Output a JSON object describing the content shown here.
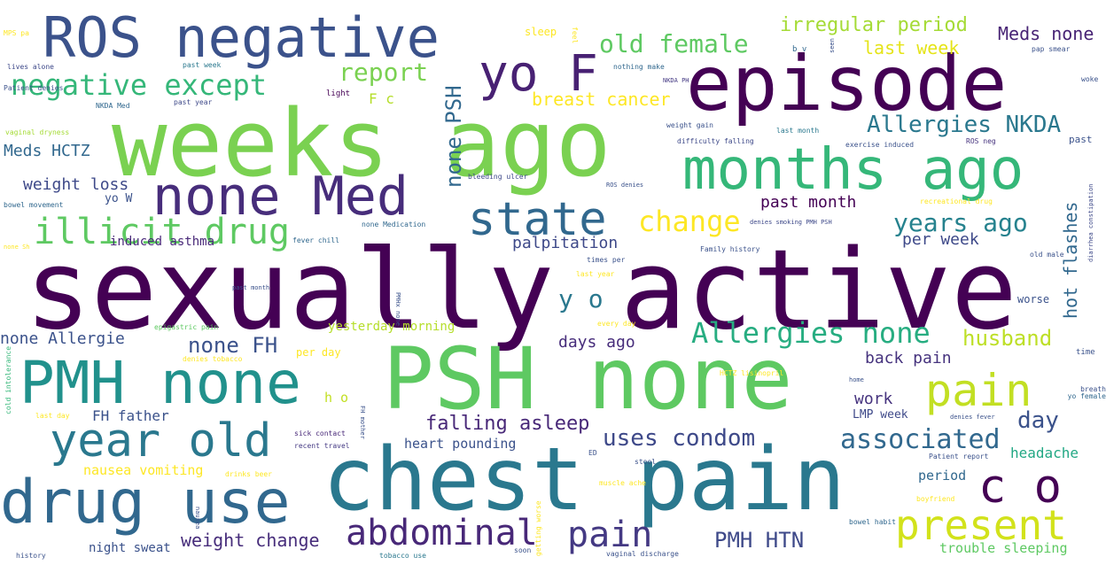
{
  "words": [
    {
      "text": "sexually active",
      "color": "#440154"
    },
    {
      "text": "weeks ago",
      "color": "#7ad151"
    },
    {
      "text": "chest pain",
      "color": "#2a788e"
    },
    {
      "text": "PSH none",
      "color": "#5ec962"
    },
    {
      "text": "episode",
      "color": "#440154"
    },
    {
      "text": "ROS negative",
      "color": "#3b528b"
    },
    {
      "text": "months ago",
      "color": "#35b779"
    },
    {
      "text": "PMH none",
      "color": "#21918c"
    },
    {
      "text": "drug use",
      "color": "#31688e"
    },
    {
      "text": "none Med",
      "color": "#472d7b"
    },
    {
      "text": "yo F",
      "color": "#482173"
    },
    {
      "text": "year old",
      "color": "#2a788e"
    },
    {
      "text": "state",
      "color": "#31688e"
    },
    {
      "text": "pain",
      "color": "#c2df23"
    },
    {
      "text": "c o",
      "color": "#440154"
    },
    {
      "text": "present",
      "color": "#d2e21b"
    },
    {
      "text": "abdominal",
      "color": "#482878"
    },
    {
      "text": "pain",
      "color": "#443983"
    },
    {
      "text": "illicit drug",
      "color": "#5ec962"
    },
    {
      "text": "negative except",
      "color": "#35b779"
    },
    {
      "text": "Allergies none",
      "color": "#27ad81"
    },
    {
      "text": "change",
      "color": "#fde725"
    },
    {
      "text": "associated",
      "color": "#31688e"
    },
    {
      "text": "uses condom",
      "color": "#3e4989"
    },
    {
      "text": "old female",
      "color": "#5ec962"
    },
    {
      "text": "Allergies NKDA",
      "color": "#2a788e"
    },
    {
      "text": "years ago",
      "color": "#26828e"
    },
    {
      "text": "report",
      "color": "#7ad151"
    },
    {
      "text": "PMH HTN",
      "color": "#3e4989"
    },
    {
      "text": "none FH",
      "color": "#3b528b"
    },
    {
      "text": "husband",
      "color": "#bddf26"
    },
    {
      "text": "none PSH",
      "color": "#31688e"
    },
    {
      "text": "y o",
      "color": "#2a788e"
    },
    {
      "text": "day",
      "color": "#3b528b"
    },
    {
      "text": "falling asleep",
      "color": "#482878"
    },
    {
      "text": "irregular period",
      "color": "#a5db36"
    },
    {
      "text": "weight change",
      "color": "#472d7b"
    },
    {
      "text": "hot flashes",
      "color": "#31688e"
    },
    {
      "text": "Meds none",
      "color": "#482475"
    },
    {
      "text": "past month",
      "color": "#440154"
    },
    {
      "text": "breast cancer",
      "color": "#fde725"
    },
    {
      "text": "last week",
      "color": "#e5e419"
    },
    {
      "text": "palpitation",
      "color": "#3e4989"
    },
    {
      "text": "back pain",
      "color": "#46337e"
    },
    {
      "text": "days ago",
      "color": "#472d7b"
    },
    {
      "text": "none Allergie",
      "color": "#3b528b"
    },
    {
      "text": "weight loss",
      "color": "#3e4989"
    },
    {
      "text": "Meds HCTZ",
      "color": "#31688e"
    },
    {
      "text": "per week",
      "color": "#3e4989"
    },
    {
      "text": "work",
      "color": "#46337e"
    },
    {
      "text": "headache",
      "color": "#22a884"
    },
    {
      "text": "heart pounding",
      "color": "#3b528b"
    },
    {
      "text": "nausea vomiting",
      "color": "#fde725"
    },
    {
      "text": "FH father",
      "color": "#3b528b"
    },
    {
      "text": "trouble sleeping",
      "color": "#5ec962"
    },
    {
      "text": "night sweat",
      "color": "#3b528b"
    },
    {
      "text": "period",
      "color": "#31688e"
    },
    {
      "text": "yesterday morning",
      "color": "#b5de2b"
    },
    {
      "text": "induced asthma",
      "color": "#482878"
    },
    {
      "text": "LMP week",
      "color": "#3e4989"
    },
    {
      "text": "yo W",
      "color": "#3b528b"
    },
    {
      "text": "F c",
      "color": "#b5de2b"
    },
    {
      "text": "h o",
      "color": "#c2df23"
    },
    {
      "text": "sleep",
      "color": "#fde725"
    },
    {
      "text": "lives alone",
      "color": "#3e4989"
    },
    {
      "text": "past week",
      "color": "#2a788e"
    },
    {
      "text": "nothing make",
      "color": "#31688e"
    },
    {
      "text": "NKDA PH",
      "color": "#443983"
    },
    {
      "text": "Patient denies",
      "color": "#3b528b"
    },
    {
      "text": "NKDA Med",
      "color": "#31688e"
    },
    {
      "text": "past year",
      "color": "#3e4989"
    },
    {
      "text": "light",
      "color": "#440154"
    },
    {
      "text": "vaginal dryness",
      "color": "#a5db36"
    },
    {
      "text": "bowel movement",
      "color": "#31688e"
    },
    {
      "text": "weight gain",
      "color": "#3b528b"
    },
    {
      "text": "last month",
      "color": "#2a788e"
    },
    {
      "text": "exercise induced",
      "color": "#3b528b"
    },
    {
      "text": "ROS neg",
      "color": "#46337e"
    },
    {
      "text": "difficulty falling",
      "color": "#3e4989"
    },
    {
      "text": "bleeding ulcer",
      "color": "#3e4989"
    },
    {
      "text": "ROS denies",
      "color": "#3b528b"
    },
    {
      "text": "fever chill",
      "color": "#31688e"
    },
    {
      "text": "none Medication",
      "color": "#31688e"
    },
    {
      "text": "recreational drug",
      "color": "#fde725"
    },
    {
      "text": "denies smoking PMH PSH",
      "color": "#3e4989"
    },
    {
      "text": "Family history",
      "color": "#3b528b"
    },
    {
      "text": "old male",
      "color": "#3b528b"
    },
    {
      "text": "times per",
      "color": "#3b528b"
    },
    {
      "text": "last year",
      "color": "#fde725"
    },
    {
      "text": "every day",
      "color": "#fde725"
    },
    {
      "text": "epigastric pain",
      "color": "#5ec962"
    },
    {
      "text": "per day",
      "color": "#fde725"
    },
    {
      "text": "denies tobacco",
      "color": "#fde725"
    },
    {
      "text": "HCTZ lisinopril",
      "color": "#fde725"
    },
    {
      "text": "sick contact",
      "color": "#482878"
    },
    {
      "text": "recent travel",
      "color": "#443983"
    },
    {
      "text": "drinks beer",
      "color": "#fde725"
    },
    {
      "text": "stool",
      "color": "#3b528b"
    },
    {
      "text": "muscle ache",
      "color": "#fde725"
    },
    {
      "text": "vaginal discharge",
      "color": "#3b528b"
    },
    {
      "text": "tobacco use",
      "color": "#2a788e"
    },
    {
      "text": "bowel habit",
      "color": "#31688e"
    },
    {
      "text": "boyfriend",
      "color": "#fde725"
    },
    {
      "text": "Patient report",
      "color": "#3b528b"
    },
    {
      "text": "last day",
      "color": "#fde725"
    },
    {
      "text": "history",
      "color": "#3b528b"
    },
    {
      "text": "yo female",
      "color": "#31688e"
    },
    {
      "text": "breath",
      "color": "#3b528b"
    },
    {
      "text": "time",
      "color": "#3b528b"
    },
    {
      "text": "past",
      "color": "#3b528b"
    },
    {
      "text": "worse",
      "color": "#3b528b"
    },
    {
      "text": "pap smear",
      "color": "#3b528b"
    },
    {
      "text": "woke",
      "color": "#3b528b"
    },
    {
      "text": "diarrhea constipation",
      "color": "#3e4989"
    },
    {
      "text": "cold intolerance",
      "color": "#35b779"
    },
    {
      "text": "MPS pa",
      "color": "#fde725"
    },
    {
      "text": "none Sh",
      "color": "#fde725"
    },
    {
      "text": "PMHx none",
      "color": "#3b528b"
    },
    {
      "text": "getting worse",
      "color": "#fde725"
    },
    {
      "text": "nausea",
      "color": "#3b528b"
    },
    {
      "text": "FH mother",
      "color": "#3b528b"
    },
    {
      "text": "denies fever",
      "color": "#3b528b"
    },
    {
      "text": "home",
      "color": "#3b528b"
    },
    {
      "text": "soon",
      "color": "#3b528b"
    },
    {
      "text": "ED",
      "color": "#3b528b"
    },
    {
      "text": "b v",
      "color": "#31688e"
    },
    {
      "text": "feel",
      "color": "#fde725"
    },
    {
      "text": "seen",
      "color": "#3b528b"
    },
    {
      "text": "past month",
      "color": "#3b528b"
    }
  ]
}
